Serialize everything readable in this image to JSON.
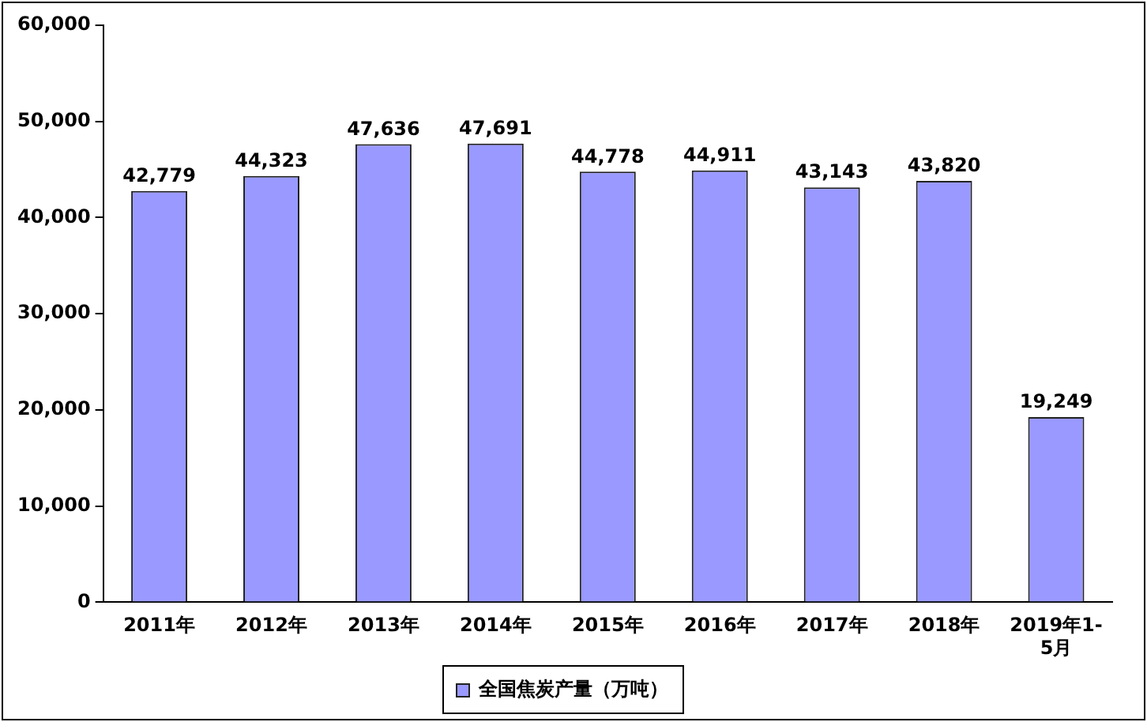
{
  "chart_data": {
    "type": "bar",
    "categories": [
      "2011年",
      "2012年",
      "2013年",
      "2014年",
      "2015年",
      "2016年",
      "2017年",
      "2018年",
      "2019年1-5月"
    ],
    "series": [
      {
        "name": "全国焦炭产量（万吨）",
        "color": "#9999ff",
        "values": [
          42779,
          44323,
          47636,
          47691,
          44778,
          44911,
          43143,
          43820,
          19249
        ],
        "value_labels": [
          "42,779",
          "44,323",
          "47,636",
          "47,691",
          "44,778",
          "44,911",
          "43,143",
          "43,820",
          "19,249"
        ]
      }
    ],
    "ylim": [
      0,
      60000
    ],
    "yticks": [
      0,
      {
        "value": 10000,
        "label": "10,000"
      },
      {
        "value": 20000,
        "label": "20,000"
      },
      {
        "value": 30000,
        "label": "30,000"
      },
      {
        "value": 40000,
        "label": "40,000"
      },
      {
        "value": 50000,
        "label": "50,000"
      },
      {
        "value": 60000,
        "label": "60,000"
      }
    ],
    "grid": false,
    "legend": "bottom"
  }
}
